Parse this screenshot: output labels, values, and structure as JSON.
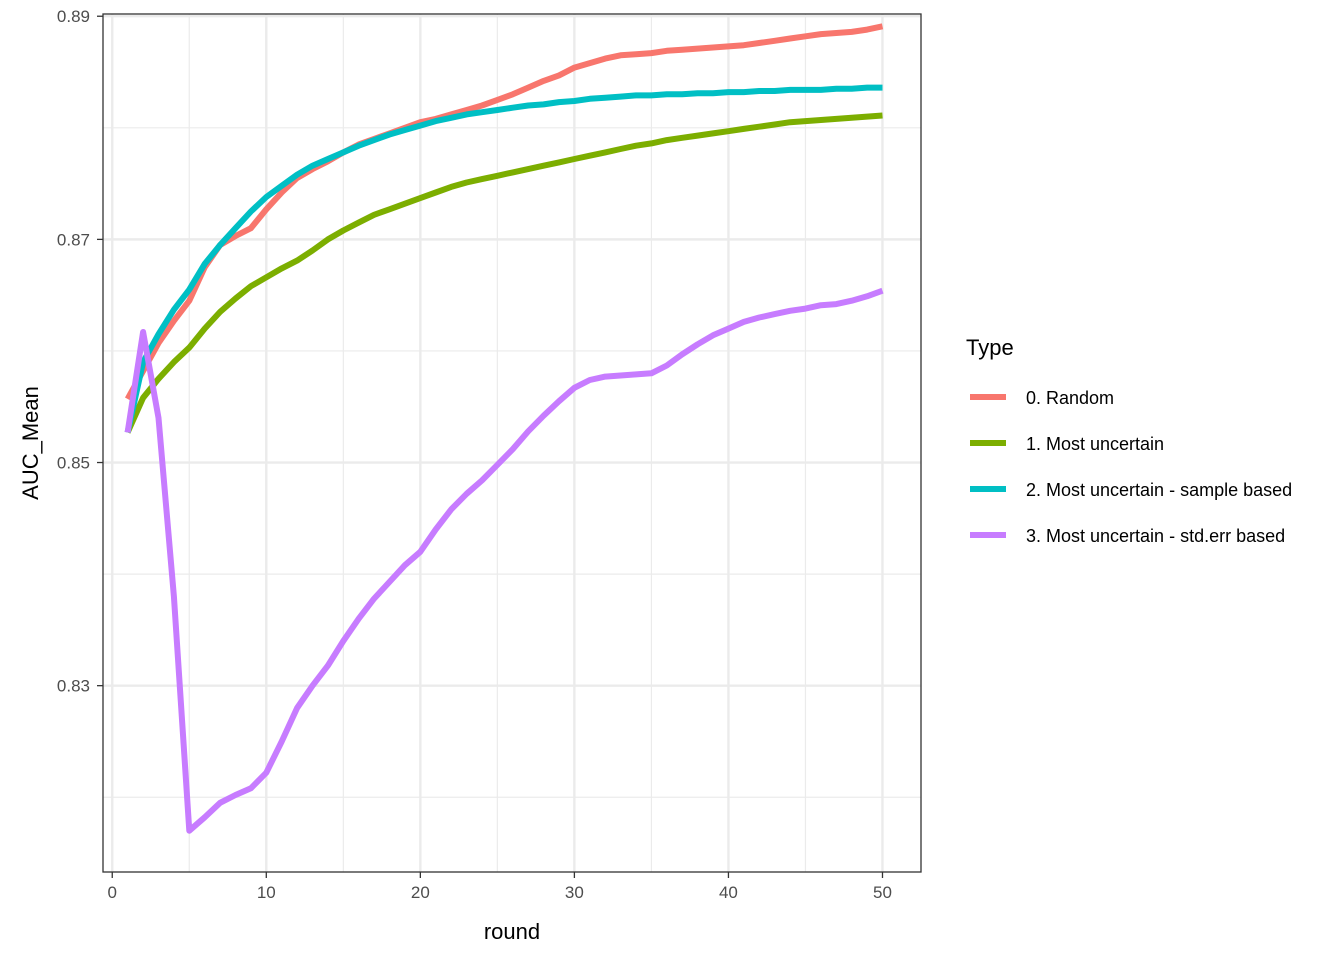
{
  "chart_data": {
    "type": "line",
    "title": "",
    "xlabel": "round",
    "ylabel": "AUC_Mean",
    "xlim": [
      -0.6,
      52.5
    ],
    "ylim": [
      0.8133,
      0.8902
    ],
    "x_ticks": [
      0,
      10,
      20,
      30,
      40,
      50
    ],
    "y_ticks": [
      0.83,
      0.85,
      0.87,
      0.89
    ],
    "y_tick_labels": [
      "0.83",
      "0.85",
      "0.87",
      "0.89"
    ],
    "grid": true,
    "legend_position": "right",
    "legend_title": "Type",
    "x": [
      1,
      2,
      3,
      4,
      5,
      6,
      7,
      8,
      9,
      10,
      11,
      12,
      13,
      14,
      15,
      16,
      17,
      18,
      19,
      20,
      21,
      22,
      23,
      24,
      25,
      26,
      27,
      28,
      29,
      30,
      31,
      32,
      33,
      34,
      35,
      36,
      37,
      38,
      39,
      40,
      41,
      42,
      43,
      44,
      45,
      46,
      47,
      48,
      49,
      50
    ],
    "series": [
      {
        "name": "0. Random",
        "color": "#F8766D",
        "values": [
          0.8557,
          0.8582,
          0.8607,
          0.8627,
          0.8645,
          0.8675,
          0.8695,
          0.8703,
          0.871,
          0.8727,
          0.8742,
          0.8755,
          0.8763,
          0.877,
          0.8778,
          0.8785,
          0.879,
          0.8795,
          0.88,
          0.8805,
          0.8808,
          0.8812,
          0.8816,
          0.882,
          0.8825,
          0.883,
          0.8836,
          0.8842,
          0.8847,
          0.8854,
          0.8858,
          0.8862,
          0.8865,
          0.8866,
          0.8867,
          0.8869,
          0.887,
          0.8871,
          0.8872,
          0.8873,
          0.8874,
          0.8876,
          0.8878,
          0.888,
          0.8882,
          0.8884,
          0.8885,
          0.8886,
          0.8888,
          0.8891
        ]
      },
      {
        "name": "1. Most uncertain",
        "color": "#7CAE00",
        "values": [
          0.8527,
          0.8558,
          0.8575,
          0.859,
          0.8603,
          0.862,
          0.8635,
          0.8647,
          0.8658,
          0.8666,
          0.8674,
          0.8681,
          0.869,
          0.87,
          0.8708,
          0.8715,
          0.8722,
          0.8727,
          0.8732,
          0.8737,
          0.8742,
          0.8747,
          0.8751,
          0.8754,
          0.8757,
          0.876,
          0.8763,
          0.8766,
          0.8769,
          0.8772,
          0.8775,
          0.8778,
          0.8781,
          0.8784,
          0.8786,
          0.8789,
          0.8791,
          0.8793,
          0.8795,
          0.8797,
          0.8799,
          0.8801,
          0.8803,
          0.8805,
          0.8806,
          0.8807,
          0.8808,
          0.8809,
          0.881,
          0.8811
        ]
      },
      {
        "name": "2. Most uncertain - sample based",
        "color": "#00BFC4",
        "values": [
          0.8527,
          0.859,
          0.8615,
          0.8637,
          0.8655,
          0.8678,
          0.8695,
          0.871,
          0.8725,
          0.8738,
          0.8748,
          0.8758,
          0.8766,
          0.8772,
          0.8778,
          0.8784,
          0.8789,
          0.8794,
          0.8798,
          0.8802,
          0.8806,
          0.8809,
          0.8812,
          0.8814,
          0.8816,
          0.8818,
          0.882,
          0.8821,
          0.8823,
          0.8824,
          0.8826,
          0.8827,
          0.8828,
          0.8829,
          0.8829,
          0.883,
          0.883,
          0.8831,
          0.8831,
          0.8832,
          0.8832,
          0.8833,
          0.8833,
          0.8834,
          0.8834,
          0.8834,
          0.8835,
          0.8835,
          0.8836,
          0.8836
        ]
      },
      {
        "name": "3. Most uncertain - std.err based",
        "color": "#C77CFF",
        "values": [
          0.8527,
          0.8617,
          0.854,
          0.838,
          0.817,
          0.8182,
          0.8195,
          0.8202,
          0.8208,
          0.8222,
          0.825,
          0.828,
          0.83,
          0.8318,
          0.834,
          0.836,
          0.8378,
          0.8393,
          0.8408,
          0.842,
          0.844,
          0.8458,
          0.8472,
          0.8484,
          0.8498,
          0.8512,
          0.8528,
          0.8542,
          0.8555,
          0.8567,
          0.8574,
          0.8577,
          0.8578,
          0.8579,
          0.858,
          0.8587,
          0.8597,
          0.8606,
          0.8614,
          0.862,
          0.8626,
          0.863,
          0.8633,
          0.8636,
          0.8638,
          0.8641,
          0.8642,
          0.8645,
          0.8649,
          0.8654
        ]
      }
    ]
  }
}
